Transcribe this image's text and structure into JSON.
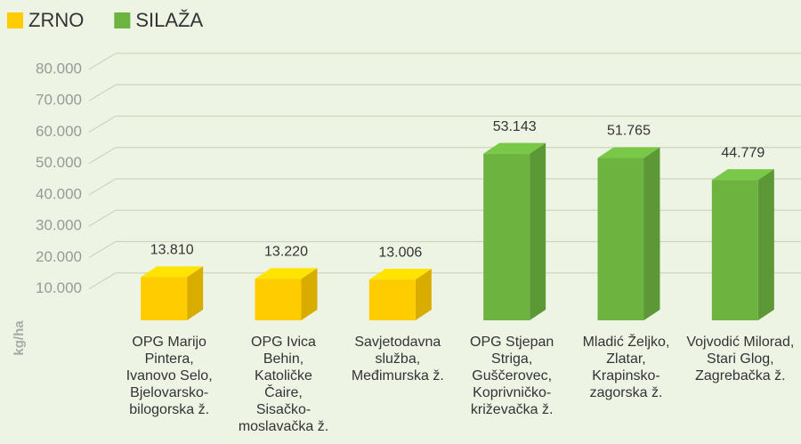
{
  "chart_data": {
    "type": "bar3d",
    "y_label": "kg/ha",
    "categories": [
      [
        "OPG Marijo",
        "Pintera,",
        "Ivanovo Selo,",
        "Bjelovarsko-",
        "bilogorska ž."
      ],
      [
        "OPG Ivica",
        "Behin,",
        "Katoličke",
        "Čaire,",
        "Sisačko-",
        "moslavačka ž."
      ],
      [
        "Savjetodavna",
        "služba,",
        "Međimurska ž."
      ],
      [
        "OPG Stjepan",
        "Striga,",
        "Guščerovec,",
        "Koprivničko-",
        "križevačka ž."
      ],
      [
        "Mladić Željko,",
        "Zlatar,",
        "Krapinsko-",
        "zagorska ž."
      ],
      [
        "Vojvodić Milorad,",
        "Stari Glog,",
        "Zagrebačka ž."
      ]
    ],
    "series": [
      {
        "name": "ZRNO",
        "color": "#ffcc00",
        "values": [
          13810,
          13220,
          13006,
          null,
          null,
          null
        ],
        "value_labels": [
          "13.810",
          "13.220",
          "13.006",
          null,
          null,
          null
        ]
      },
      {
        "name": "SILAŽA",
        "color": "#6db33f",
        "values": [
          null,
          null,
          null,
          53143,
          51765,
          44779
        ],
        "value_labels": [
          null,
          null,
          null,
          "53.143",
          "51.765",
          "44.779"
        ]
      }
    ],
    "ylim": [
      0,
      80000
    ],
    "yticks": [
      {
        "value": 10000,
        "label": "10.000"
      },
      {
        "value": 20000,
        "label": "20.000"
      },
      {
        "value": 30000,
        "label": "30.000"
      },
      {
        "value": 40000,
        "label": "40.000"
      },
      {
        "value": 50000,
        "label": "50.000"
      },
      {
        "value": 60000,
        "label": "60.000"
      },
      {
        "value": 70000,
        "label": "70.000"
      },
      {
        "value": 80000,
        "label": "80.000"
      }
    ],
    "grid": true,
    "legend": "top-left"
  }
}
